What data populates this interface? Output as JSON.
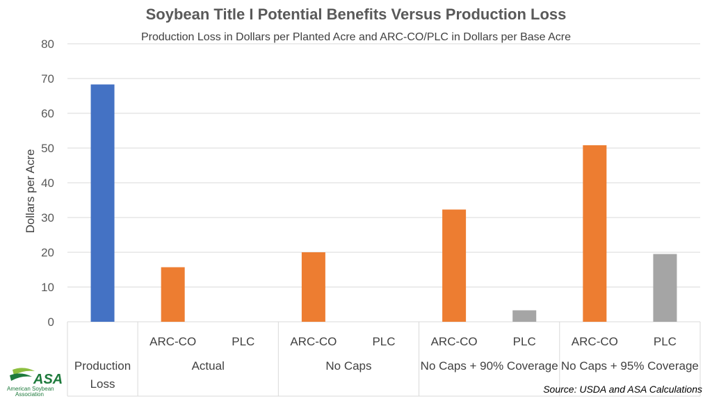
{
  "chart_data": {
    "type": "bar",
    "title": "Soybean Title I Potential Benefits Versus Production Loss",
    "subtitle": "Production Loss in Dollars per Planted Acre and ARC-CO/PLC in Dollars per Base Acre",
    "ylabel": "Dollars per Acre",
    "ylim": [
      0,
      80
    ],
    "yticks": [
      0,
      10,
      20,
      30,
      40,
      50,
      60,
      70,
      80
    ],
    "grid": true,
    "groups": [
      {
        "label": [
          "Production",
          "Loss"
        ],
        "bars": [
          {
            "sublabel": "",
            "value": 68.3,
            "color": "#4472C4"
          }
        ]
      },
      {
        "label": [
          "Actual"
        ],
        "bars": [
          {
            "sublabel": "ARC-CO",
            "value": 15.7,
            "color": "#ED7D31"
          },
          {
            "sublabel": "PLC",
            "value": 0,
            "color": "#A5A5A5"
          }
        ]
      },
      {
        "label": [
          "No Caps"
        ],
        "bars": [
          {
            "sublabel": "ARC-CO",
            "value": 20.0,
            "color": "#ED7D31"
          },
          {
            "sublabel": "PLC",
            "value": 0,
            "color": "#A5A5A5"
          }
        ]
      },
      {
        "label": [
          "No Caps + 90% Coverage"
        ],
        "bars": [
          {
            "sublabel": "ARC-CO",
            "value": 32.3,
            "color": "#ED7D31"
          },
          {
            "sublabel": "PLC",
            "value": 3.3,
            "color": "#A5A5A5"
          }
        ]
      },
      {
        "label": [
          "No Caps + 95% Coverage"
        ],
        "bars": [
          {
            "sublabel": "ARC-CO",
            "value": 50.8,
            "color": "#ED7D31"
          },
          {
            "sublabel": "PLC",
            "value": 19.5,
            "color": "#A5A5A5"
          }
        ]
      }
    ]
  },
  "source": "Source: USDA and ASA Calculations",
  "logo": {
    "text": "ASA",
    "name_line1": "American Soybean",
    "name_line2": "Association"
  },
  "colors": {
    "blue": "#4472C4",
    "orange": "#ED7D31",
    "gray": "#A5A5A5",
    "logo_green": "#1E7A3C"
  }
}
